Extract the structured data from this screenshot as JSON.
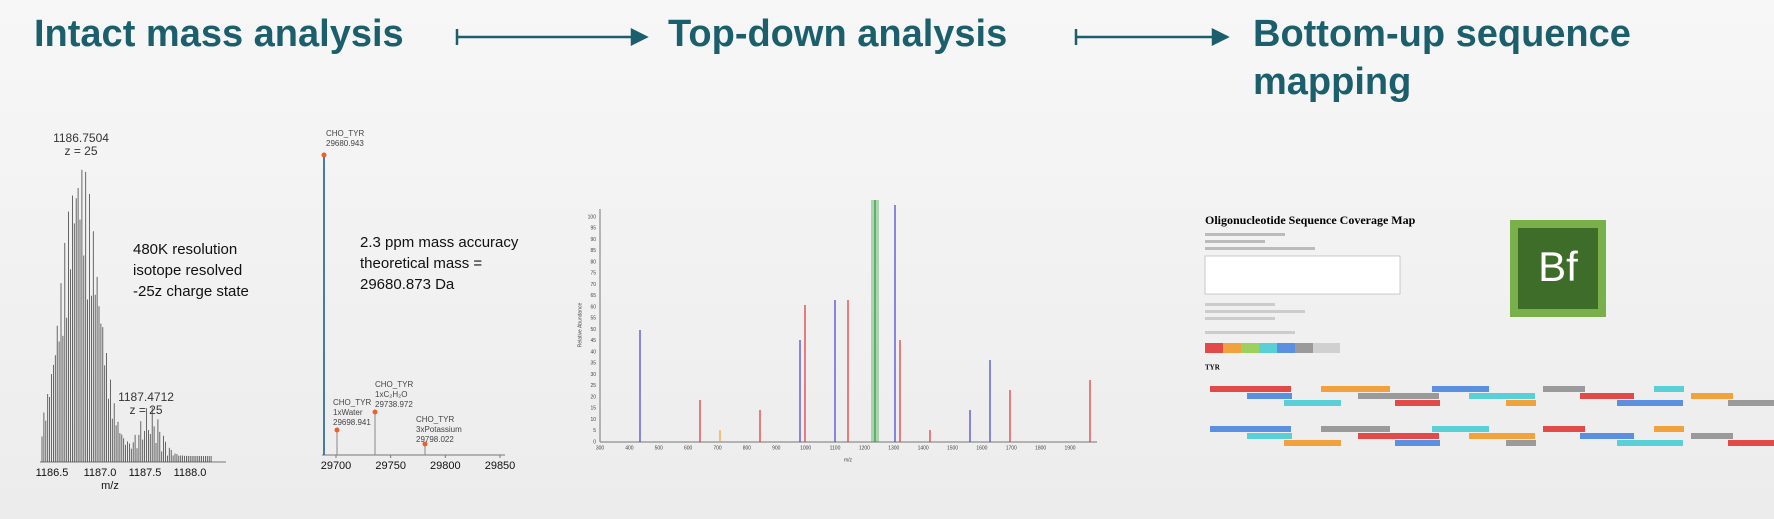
{
  "header": {
    "steps": [
      "Intact mass analysis",
      "Top-down analysis",
      "Bottom-up sequence",
      "mapping"
    ]
  },
  "intact": {
    "peak1": [
      "1186.7504",
      "z = 25"
    ],
    "peak2": [
      "1187.4712",
      "z = 25"
    ],
    "note": [
      "480K resolution",
      "isotope resolved",
      "-25z charge state"
    ],
    "xticks": [
      "1186.5",
      "1187.0",
      "1187.5",
      "1188.0"
    ],
    "xlabel": "m/z"
  },
  "deconvolved": {
    "main": [
      "CHO_TYR",
      "29680.943"
    ],
    "water": [
      "CHO_TYR",
      "1xWater",
      "29698.941"
    ],
    "c2h2o": [
      "CHO_TYR",
      "1xC₂H₂O",
      "29738.972"
    ],
    "potassium": [
      "CHO_TYR",
      "3xPotassium",
      "29798.022"
    ],
    "note": [
      "2.3 ppm mass accuracy",
      "theoretical mass =",
      "29680.873 Da"
    ],
    "xticks": [
      29700,
      29750,
      29800,
      29850
    ]
  },
  "topdown": {
    "ylabel": "Relative Abundance",
    "xlabel": "m/z",
    "xticks": [
      300,
      400,
      500,
      600,
      700,
      800,
      900,
      1000,
      1100,
      1200,
      1300,
      1400,
      1500,
      1600,
      1700,
      1800,
      1900
    ],
    "yticks": [
      0,
      5,
      10,
      15,
      20,
      25,
      30,
      35,
      40,
      45,
      50,
      55,
      60,
      65,
      70,
      75,
      80,
      85,
      90,
      95,
      100
    ]
  },
  "report": {
    "title": "Oligonucleotide Sequence Coverage Map",
    "sequence_label": "TYR",
    "logo": "Bf"
  }
}
